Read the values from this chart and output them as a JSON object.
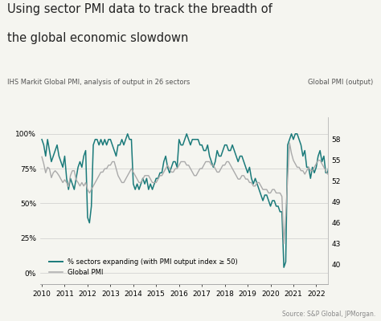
{
  "title_line1": "Using sector PMI data to track the breadth of",
  "title_line2": "the global economic slowdown",
  "subtitle_left": "IHS Markit Global PMI, analysis of output in 26 sectors",
  "subtitle_right": "Global PMI (output)",
  "source": "Source: S&P Global, JPMorgan.",
  "left_yticks": [
    0,
    25,
    50,
    75,
    100
  ],
  "left_ylabels": [
    "0%",
    "25%",
    "50%",
    "75%",
    "100%"
  ],
  "right_yticks": [
    40,
    43,
    46,
    49,
    52,
    55,
    58
  ],
  "left_ylim": [
    -8,
    112
  ],
  "right_ylim": [
    37.2,
    61.2
  ],
  "xlim": [
    2009.92,
    2022.5
  ],
  "teal_color": "#1a7a7a",
  "gray_color": "#aaaaaa",
  "bg_color": "#f5f5f0",
  "sectors_expanding": [
    96,
    92,
    84,
    96,
    88,
    80,
    84,
    88,
    92,
    84,
    80,
    76,
    84,
    68,
    60,
    68,
    64,
    60,
    68,
    76,
    80,
    76,
    84,
    88,
    40,
    36,
    48,
    92,
    96,
    96,
    92,
    96,
    92,
    96,
    92,
    96,
    96,
    92,
    88,
    84,
    92,
    92,
    96,
    92,
    96,
    100,
    96,
    96,
    64,
    60,
    64,
    60,
    64,
    68,
    64,
    68,
    60,
    64,
    60,
    64,
    68,
    68,
    72,
    72,
    80,
    84,
    76,
    72,
    76,
    80,
    80,
    76,
    96,
    92,
    92,
    96,
    100,
    96,
    92,
    96,
    96,
    96,
    96,
    92,
    92,
    88,
    88,
    92,
    84,
    80,
    76,
    80,
    88,
    84,
    84,
    88,
    92,
    92,
    88,
    88,
    92,
    88,
    84,
    80,
    84,
    84,
    80,
    76,
    72,
    76,
    68,
    64,
    68,
    64,
    60,
    56,
    52,
    56,
    56,
    52,
    48,
    52,
    52,
    48,
    48,
    44,
    44,
    4,
    8,
    92,
    96,
    100,
    96,
    100,
    100,
    96,
    92,
    84,
    88,
    76,
    76,
    68,
    76,
    72,
    76,
    84,
    88,
    80,
    84,
    72,
    72,
    80,
    76,
    80,
    84,
    88,
    84,
    88,
    84,
    80
  ],
  "global_pmi": [
    55.5,
    54.5,
    53.2,
    54.0,
    53.8,
    52.5,
    53.2,
    53.5,
    53.2,
    52.8,
    52.3,
    51.8,
    52.2,
    51.8,
    51.2,
    52.8,
    53.5,
    53.5,
    52.2,
    51.8,
    51.3,
    51.8,
    51.3,
    51.8,
    50.8,
    50.3,
    50.8,
    51.3,
    51.8,
    52.3,
    52.8,
    53.3,
    53.3,
    53.8,
    53.8,
    54.3,
    54.3,
    54.8,
    54.8,
    53.8,
    52.8,
    52.3,
    51.8,
    51.8,
    52.3,
    52.8,
    53.3,
    53.8,
    53.3,
    52.8,
    52.3,
    51.8,
    51.8,
    52.3,
    52.8,
    52.8,
    52.8,
    52.3,
    51.8,
    51.8,
    51.8,
    52.3,
    52.8,
    52.8,
    53.3,
    53.8,
    54.3,
    53.8,
    53.3,
    53.3,
    53.8,
    53.8,
    54.3,
    54.8,
    54.8,
    54.8,
    54.3,
    54.3,
    53.8,
    53.3,
    52.8,
    52.8,
    53.3,
    53.8,
    53.8,
    54.3,
    54.8,
    54.8,
    54.8,
    54.3,
    54.3,
    53.8,
    53.3,
    53.3,
    53.8,
    54.3,
    54.3,
    54.8,
    54.8,
    54.3,
    53.8,
    53.3,
    52.8,
    52.3,
    52.3,
    52.8,
    52.8,
    52.3,
    52.3,
    51.8,
    51.8,
    51.3,
    51.3,
    51.8,
    51.8,
    51.3,
    50.8,
    50.8,
    50.8,
    50.3,
    50.3,
    50.8,
    50.8,
    50.3,
    50.3,
    50.3,
    49.8,
    43.0,
    47.0,
    52.5,
    57.5,
    56.0,
    55.0,
    54.5,
    54.0,
    54.0,
    53.5,
    53.5,
    53.0,
    53.5,
    54.0,
    53.5,
    53.5,
    54.0,
    54.5,
    55.0,
    55.0,
    54.5,
    54.0,
    53.5,
    53.0,
    53.0,
    53.5,
    53.5,
    53.5,
    53.0,
    52.5,
    52.0,
    51.5,
    51.0
  ]
}
